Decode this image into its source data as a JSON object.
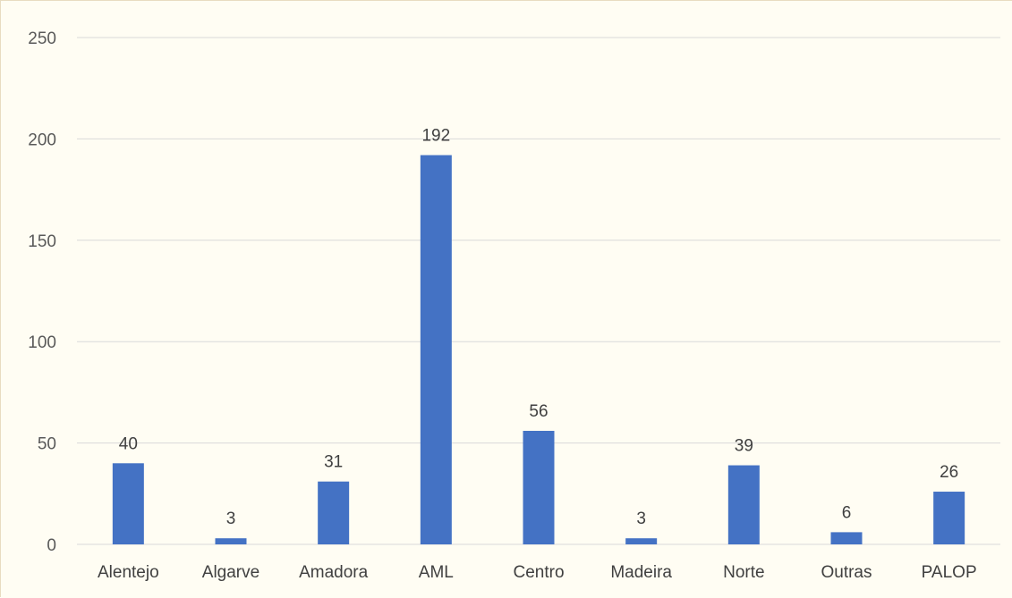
{
  "colors": {
    "background": "#fffdf3",
    "bar": "#4472c4",
    "grid": "#d9d9d9"
  },
  "chart_data": {
    "type": "bar",
    "title": "",
    "xlabel": "",
    "ylabel": "",
    "categories": [
      "Alentejo",
      "Algarve",
      "Amadora",
      "AML",
      "Centro",
      "Madeira",
      "Norte",
      "Outras",
      "PALOP"
    ],
    "values": [
      40,
      3,
      31,
      192,
      56,
      3,
      39,
      6,
      26
    ],
    "data_labels": [
      "40",
      "3",
      "31",
      "192",
      "56",
      "3",
      "39",
      "6",
      "26"
    ],
    "ylim": [
      0,
      250
    ],
    "yticks": [
      0,
      50,
      100,
      150,
      200,
      250
    ],
    "ytick_labels": [
      "0",
      "50",
      "100",
      "150",
      "200",
      "250"
    ],
    "grid": true,
    "legend": "none"
  }
}
